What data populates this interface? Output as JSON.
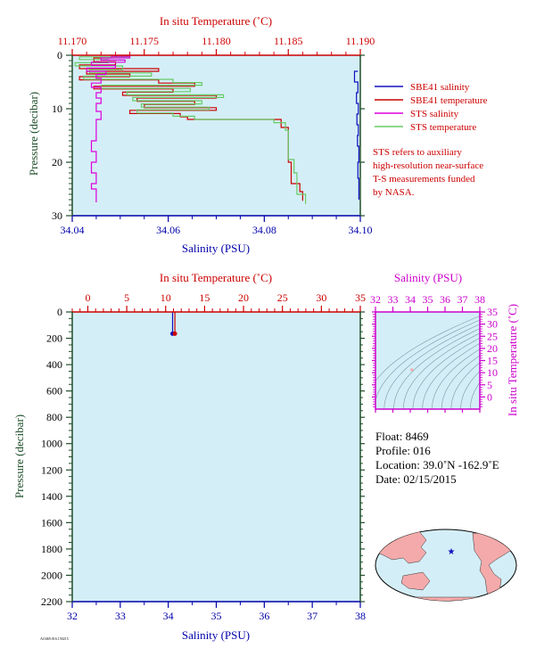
{
  "colors": {
    "background": "#d4eef7",
    "temperature_axis": "#cc0000",
    "salinity_axis": "#0000aa",
    "pressure_axis": "#1f4e2a",
    "sbe41_salinity": "#1010c0",
    "sbe41_temperature": "#cc0000",
    "sts_salinity": "#dd00dd",
    "sts_temperature": "#66cc66",
    "ts_axis": "#cc00cc",
    "land": "#f4aaaa",
    "ocean": "#d4eef7"
  },
  "top_panel": {
    "top_axis_title": "In situ Temperature (˚C)",
    "bottom_axis_title": "Salinity (PSU)",
    "left_axis_title": "Pressure (decibar)"
  },
  "legend": {
    "entries": [
      "SBE41 salinity",
      "SBE41 temperature",
      "STS salinity",
      "STS temperature"
    ],
    "note": [
      "STS refers to auxiliary",
      "high-resolution near-surface",
      "T-S measurements funded",
      "by NASA."
    ]
  },
  "bottom_panel": {
    "top_axis_title": "In situ Temperature (˚C)",
    "bottom_axis_title": "Salinity (PSU)",
    "left_axis_title": "Pressure (decibar)"
  },
  "ts_panel": {
    "top_axis_title": "Salinity (PSU)",
    "right_axis_title": "In situ Temperature (˚C)"
  },
  "float_info": {
    "float": "Float:  8469",
    "profile": "Profile:  016",
    "location": "Location:  39.0˚N  -162.9˚E",
    "date": "Date:  02/15/2015"
  },
  "footer_code": "AO469.016.150215",
  "chart_data": [
    {
      "type": "line",
      "name": "near-surface profile",
      "y_axis": {
        "label": "Pressure (decibar)",
        "lim": [
          30,
          0
        ],
        "ticks": [
          0,
          10,
          20,
          30
        ]
      },
      "x_axis_bottom": {
        "label": "Salinity (PSU)",
        "lim": [
          34.04,
          34.1
        ],
        "ticks": [
          "34.04",
          "34.06",
          "34.08",
          "34.10"
        ]
      },
      "x_axis_top": {
        "label": "In situ Temperature (˚C)",
        "lim": [
          11.17,
          11.19
        ],
        "ticks": [
          "11.170",
          "11.175",
          "11.180",
          "11.185",
          "11.190"
        ]
      },
      "series": [
        {
          "name": "SBE41 temperature",
          "axis": "top",
          "color": "#cc0000",
          "points": [
            [
              11.1728,
              0.5
            ],
            [
              11.1715,
              1.2
            ],
            [
              11.173,
              1.8
            ],
            [
              11.1705,
              2.5
            ],
            [
              11.176,
              3.0
            ],
            [
              11.171,
              3.5
            ],
            [
              11.174,
              4.0
            ],
            [
              11.1705,
              4.6
            ],
            [
              11.176,
              5.2
            ],
            [
              11.1785,
              5.8
            ],
            [
              11.1715,
              6.3
            ],
            [
              11.177,
              6.9
            ],
            [
              11.1735,
              7.5
            ],
            [
              11.18,
              8.0
            ],
            [
              11.1745,
              8.6
            ],
            [
              11.1785,
              9.2
            ],
            [
              11.175,
              9.8
            ],
            [
              11.18,
              10.3
            ],
            [
              11.174,
              10.9
            ],
            [
              11.1775,
              11.5
            ],
            [
              11.178,
              12.0
            ],
            [
              11.1845,
              12.5
            ],
            [
              11.1845,
              13.5
            ],
            [
              11.185,
              14.5
            ],
            [
              11.185,
              20.0
            ],
            [
              11.1852,
              21.5
            ],
            [
              11.1852,
              24.0
            ],
            [
              11.1858,
              25.5
            ],
            [
              11.186,
              27.2
            ]
          ]
        },
        {
          "name": "STS temperature",
          "axis": "top",
          "color": "#66cc66",
          "points": [
            [
              11.174,
              0.3
            ],
            [
              11.1705,
              0.8
            ],
            [
              11.1725,
              1.4
            ],
            [
              11.1702,
              2.0
            ],
            [
              11.1735,
              2.7
            ],
            [
              11.1712,
              3.3
            ],
            [
              11.1755,
              3.9
            ],
            [
              11.1708,
              4.5
            ],
            [
              11.177,
              5.1
            ],
            [
              11.179,
              5.6
            ],
            [
              11.172,
              6.2
            ],
            [
              11.1782,
              6.8
            ],
            [
              11.1738,
              7.4
            ],
            [
              11.1805,
              7.9
            ],
            [
              11.1742,
              8.5
            ],
            [
              11.179,
              9.1
            ],
            [
              11.1748,
              9.7
            ],
            [
              11.1795,
              10.2
            ],
            [
              11.1745,
              10.8
            ],
            [
              11.177,
              11.4
            ],
            [
              11.1785,
              12.0
            ],
            [
              11.184,
              12.6
            ],
            [
              11.1848,
              14.0
            ],
            [
              11.185,
              16.0
            ],
            [
              11.185,
              19.5
            ],
            [
              11.1854,
              22.0
            ],
            [
              11.1856,
              26.0
            ],
            [
              11.1862,
              27.8
            ]
          ]
        },
        {
          "name": "STS salinity",
          "axis": "bottom",
          "color": "#dd00dd",
          "points": [
            [
              34.048,
              0.2
            ],
            [
              34.052,
              0.5
            ],
            [
              34.046,
              0.9
            ],
            [
              34.051,
              1.3
            ],
            [
              34.044,
              1.9
            ],
            [
              34.049,
              2.4
            ],
            [
              34.043,
              3.0
            ],
            [
              34.047,
              3.6
            ],
            [
              34.045,
              4.3
            ],
            [
              34.046,
              5.2
            ],
            [
              34.044,
              6.0
            ],
            [
              34.046,
              7.0
            ],
            [
              34.045,
              8.0
            ],
            [
              34.046,
              9.0
            ],
            [
              34.045,
              10.5
            ],
            [
              34.046,
              12.0
            ],
            [
              34.045,
              14.0
            ],
            [
              34.045,
              16.0
            ],
            [
              34.044,
              18.0
            ],
            [
              34.045,
              20.0
            ],
            [
              34.044,
              22.0
            ],
            [
              34.045,
              24.0
            ],
            [
              34.044,
              25.0
            ],
            [
              34.045,
              26.0
            ],
            [
              34.045,
              27.5
            ]
          ]
        },
        {
          "name": "SBE41 salinity",
          "axis": "bottom",
          "color": "#1010c0",
          "points": [
            [
              34.0995,
              3.0
            ],
            [
              34.0988,
              5.0
            ],
            [
              34.0995,
              7.0
            ],
            [
              34.0992,
              9.0
            ],
            [
              34.0996,
              11.0
            ],
            [
              34.0993,
              13.0
            ],
            [
              34.0996,
              15.0
            ],
            [
              34.0994,
              17.0
            ],
            [
              34.0997,
              20.0
            ],
            [
              34.0995,
              23.0
            ],
            [
              34.0997,
              27.0
            ]
          ]
        }
      ]
    },
    {
      "type": "line",
      "name": "full profile",
      "y_axis": {
        "label": "Pressure (decibar)",
        "lim": [
          2200,
          0
        ],
        "ticks": [
          0,
          200,
          400,
          600,
          800,
          1000,
          1200,
          1400,
          1600,
          1800,
          2000,
          2200
        ]
      },
      "x_axis_bottom": {
        "label": "Salinity (PSU)",
        "lim": [
          32,
          38
        ],
        "ticks": [
          32,
          33,
          34,
          35,
          36,
          37,
          38
        ]
      },
      "x_axis_top": {
        "label": "In situ Temperature (˚C)",
        "lim": [
          -2,
          35
        ],
        "ticks": [
          0,
          5,
          10,
          15,
          20,
          25,
          30,
          35
        ]
      },
      "series": [
        {
          "name": "SBE41 salinity",
          "axis": "bottom",
          "color": "#1010c0",
          "points": [
            [
              34.09,
              0
            ],
            [
              34.09,
              165
            ]
          ]
        },
        {
          "name": "SBE41 temperature",
          "axis": "top",
          "color": "#cc0000",
          "points": [
            [
              11.18,
              0
            ],
            [
              11.18,
              165
            ]
          ]
        }
      ]
    },
    {
      "type": "scatter",
      "name": "T-S diagram",
      "x_axis": {
        "label": "Salinity (PSU)",
        "lim": [
          32,
          38
        ],
        "ticks": [
          32,
          33,
          34,
          35,
          36,
          37,
          38
        ]
      },
      "y_axis": {
        "label": "In situ Temperature (˚C)",
        "lim": [
          -5,
          35
        ],
        "ticks": [
          0,
          5,
          10,
          15,
          20,
          25,
          30,
          35
        ]
      },
      "points": [
        [
          34.09,
          11.18
        ]
      ]
    }
  ]
}
